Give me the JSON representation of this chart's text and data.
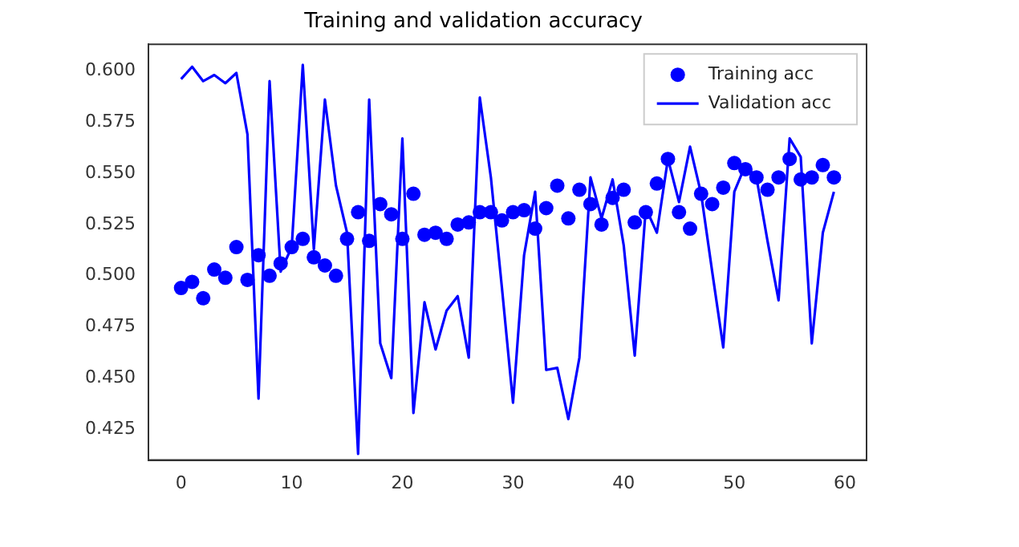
{
  "chart_data": {
    "type": "line",
    "title": "Training and validation accuracy",
    "x": [
      0,
      1,
      2,
      3,
      4,
      5,
      6,
      7,
      8,
      9,
      10,
      11,
      12,
      13,
      14,
      15,
      16,
      17,
      18,
      19,
      20,
      21,
      22,
      23,
      24,
      25,
      26,
      27,
      28,
      29,
      30,
      31,
      32,
      33,
      34,
      35,
      36,
      37,
      38,
      39,
      40,
      41,
      42,
      43,
      44,
      45,
      46,
      47,
      48,
      49,
      50,
      51,
      52,
      53,
      54,
      55,
      56,
      57,
      58,
      59
    ],
    "series": [
      {
        "name": "Training acc",
        "type": "scatter",
        "marker": "circle",
        "color": "#0000ff",
        "values": [
          0.494,
          0.497,
          0.489,
          0.503,
          0.499,
          0.514,
          0.498,
          0.51,
          0.5,
          0.506,
          0.514,
          0.518,
          0.509,
          0.505,
          0.5,
          0.518,
          0.531,
          0.517,
          0.535,
          0.53,
          0.518,
          0.54,
          0.52,
          0.521,
          0.518,
          0.525,
          0.526,
          0.531,
          0.531,
          0.527,
          0.531,
          0.532,
          0.523,
          0.533,
          0.544,
          0.528,
          0.542,
          0.535,
          0.525,
          0.538,
          0.542,
          0.526,
          0.531,
          0.545,
          0.557,
          0.531,
          0.523,
          0.54,
          0.535,
          0.543,
          0.555,
          0.552,
          0.548,
          0.542,
          0.548,
          0.557,
          0.547,
          0.548,
          0.554,
          0.548
        ]
      },
      {
        "name": "Validation acc",
        "type": "line",
        "line_style": "solid",
        "color": "#0000ff",
        "values": [
          0.596,
          0.602,
          0.595,
          0.598,
          0.594,
          0.599,
          0.569,
          0.44,
          0.595,
          0.502,
          0.514,
          0.603,
          0.513,
          0.586,
          0.544,
          0.521,
          0.413,
          0.586,
          0.467,
          0.45,
          0.567,
          0.433,
          0.487,
          0.464,
          0.483,
          0.49,
          0.46,
          0.587,
          0.548,
          0.494,
          0.438,
          0.51,
          0.541,
          0.454,
          0.455,
          0.43,
          0.46,
          0.548,
          0.528,
          0.547,
          0.515,
          0.461,
          0.533,
          0.521,
          0.557,
          0.536,
          0.563,
          0.54,
          0.502,
          0.465,
          0.541,
          0.554,
          0.548,
          0.517,
          0.488,
          0.567,
          0.558,
          0.467,
          0.521,
          0.541
        ]
      }
    ],
    "xlim": [
      -2.95,
      61.95
    ],
    "xticks": [
      0,
      10,
      20,
      30,
      40,
      50,
      60
    ],
    "ylim": [
      0.41,
      0.613
    ],
    "yticks": [
      0.425,
      {
        "value": 0.45,
        "label": "0.450"
      },
      0.475,
      {
        "value": 0.5,
        "label": "0.500"
      },
      0.525,
      {
        "value": 0.55,
        "label": "0.550"
      },
      0.575,
      {
        "value": 0.6,
        "label": "0.600"
      }
    ],
    "grid": false,
    "legend": "top right"
  }
}
